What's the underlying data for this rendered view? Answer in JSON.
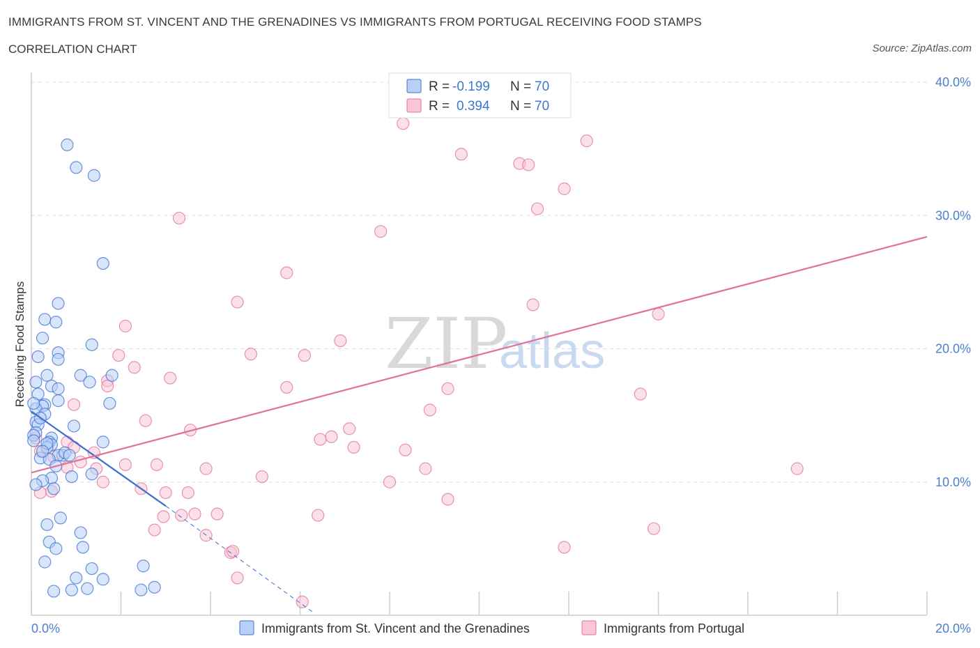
{
  "title": "IMMIGRANTS FROM ST. VINCENT AND THE GRENADINES VS IMMIGRANTS FROM PORTUGAL RECEIVING FOOD STAMPS",
  "subtitle": "CORRELATION CHART",
  "source": "Source: ZipAtlas.com",
  "watermark": {
    "zip": "ZIP",
    "atlas": "atlas"
  },
  "legend": {
    "r_label": "R =",
    "n_label": "N =",
    "rows": [
      {
        "r": "-0.199",
        "n": "70"
      },
      {
        "r": "0.394",
        "n": "70"
      }
    ]
  },
  "colors": {
    "blue": "#3a6fd0",
    "blue_fill": "#b8d0f5",
    "pink": "#e0709a",
    "pink_fill": "#f8c6d6",
    "grid": "#dddddd",
    "axis_text": "#4a7fd0"
  },
  "chart_data": {
    "type": "scatter",
    "title": "IMMIGRANTS FROM ST. VINCENT AND THE GRENADINES VS IMMIGRANTS FROM PORTUGAL RECEIVING FOOD STAMPS",
    "xlabel": "",
    "ylabel": "Receiving Food Stamps",
    "xlim": [
      0,
      20
    ],
    "ylim": [
      0,
      40
    ],
    "x_tick_labels": [
      "0.0%",
      "20.0%"
    ],
    "y_tick_labels": [
      "10.0%",
      "20.0%",
      "30.0%",
      "40.0%"
    ],
    "y_tick_values": [
      10,
      20,
      30,
      40
    ],
    "series": [
      {
        "name": "Immigrants from St. Vincent and the Grenadines",
        "r": -0.199,
        "n": 70,
        "trend": {
          "x": [
            0.0,
            3.0
          ],
          "y": [
            15.3,
            8.2
          ],
          "dashed_to": {
            "x": 6.3,
            "y": 0.2
          }
        },
        "points": [
          [
            0.8,
            35.3
          ],
          [
            1.0,
            33.6
          ],
          [
            1.4,
            33.0
          ],
          [
            1.6,
            26.4
          ],
          [
            0.6,
            23.4
          ],
          [
            0.3,
            22.2
          ],
          [
            0.55,
            22.0
          ],
          [
            0.25,
            20.8
          ],
          [
            1.35,
            20.3
          ],
          [
            0.6,
            19.7
          ],
          [
            0.15,
            19.4
          ],
          [
            0.6,
            19.2
          ],
          [
            1.1,
            18.0
          ],
          [
            0.35,
            18.0
          ],
          [
            1.8,
            18.0
          ],
          [
            1.3,
            17.5
          ],
          [
            0.1,
            17.5
          ],
          [
            0.45,
            17.2
          ],
          [
            0.6,
            17.0
          ],
          [
            0.15,
            16.6
          ],
          [
            0.6,
            16.1
          ],
          [
            1.75,
            15.9
          ],
          [
            0.3,
            15.8
          ],
          [
            0.25,
            15.7
          ],
          [
            0.1,
            15.5
          ],
          [
            0.3,
            15.1
          ],
          [
            0.1,
            14.5
          ],
          [
            0.15,
            14.3
          ],
          [
            0.95,
            14.2
          ],
          [
            0.1,
            13.7
          ],
          [
            0.05,
            13.5
          ],
          [
            0.45,
            13.3
          ],
          [
            0.4,
            13.0
          ],
          [
            1.6,
            13.0
          ],
          [
            0.45,
            12.8
          ],
          [
            0.35,
            12.6
          ],
          [
            0.7,
            12.0
          ],
          [
            0.6,
            12.0
          ],
          [
            0.75,
            12.2
          ],
          [
            0.85,
            12.0
          ],
          [
            0.2,
            11.8
          ],
          [
            0.4,
            11.7
          ],
          [
            1.35,
            10.6
          ],
          [
            0.9,
            10.4
          ],
          [
            0.45,
            10.3
          ],
          [
            0.25,
            10.1
          ],
          [
            0.1,
            9.8
          ],
          [
            0.5,
            9.5
          ],
          [
            0.65,
            7.3
          ],
          [
            0.35,
            6.8
          ],
          [
            1.1,
            6.2
          ],
          [
            0.4,
            5.5
          ],
          [
            0.55,
            5.0
          ],
          [
            1.15,
            5.1
          ],
          [
            0.3,
            4.0
          ],
          [
            1.35,
            3.5
          ],
          [
            2.5,
            3.7
          ],
          [
            1.0,
            2.8
          ],
          [
            1.6,
            2.7
          ],
          [
            0.5,
            1.8
          ],
          [
            0.9,
            1.9
          ],
          [
            1.25,
            2.0
          ],
          [
            2.45,
            1.9
          ],
          [
            2.75,
            2.1
          ],
          [
            0.05,
            15.9
          ],
          [
            0.2,
            14.8
          ],
          [
            0.35,
            12.9
          ],
          [
            0.05,
            13.1
          ],
          [
            0.55,
            11.2
          ],
          [
            0.25,
            12.3
          ]
        ]
      },
      {
        "name": "Immigrants from Portugal",
        "r": 0.394,
        "n": 70,
        "trend": {
          "x": [
            0.0,
            20.0
          ],
          "y": [
            10.7,
            28.4
          ]
        },
        "points": [
          [
            8.3,
            36.9
          ],
          [
            12.4,
            35.6
          ],
          [
            9.6,
            34.6
          ],
          [
            10.9,
            33.9
          ],
          [
            11.1,
            33.8
          ],
          [
            11.9,
            32.0
          ],
          [
            11.3,
            30.5
          ],
          [
            3.3,
            29.8
          ],
          [
            7.8,
            28.8
          ],
          [
            5.7,
            25.7
          ],
          [
            4.6,
            23.5
          ],
          [
            11.2,
            23.3
          ],
          [
            14.0,
            22.6
          ],
          [
            2.1,
            21.7
          ],
          [
            6.9,
            20.6
          ],
          [
            4.9,
            19.6
          ],
          [
            6.1,
            19.5
          ],
          [
            1.95,
            19.5
          ],
          [
            2.3,
            18.6
          ],
          [
            3.1,
            17.8
          ],
          [
            1.7,
            17.6
          ],
          [
            1.7,
            17.2
          ],
          [
            5.7,
            17.1
          ],
          [
            9.3,
            17.0
          ],
          [
            13.6,
            16.6
          ],
          [
            0.95,
            15.8
          ],
          [
            8.9,
            15.4
          ],
          [
            2.55,
            14.6
          ],
          [
            7.1,
            14.0
          ],
          [
            3.55,
            13.9
          ],
          [
            6.7,
            13.4
          ],
          [
            6.45,
            13.2
          ],
          [
            0.8,
            13.0
          ],
          [
            7.2,
            12.6
          ],
          [
            8.35,
            12.4
          ],
          [
            0.95,
            12.6
          ],
          [
            0.2,
            12.3
          ],
          [
            1.4,
            12.2
          ],
          [
            0.5,
            11.9
          ],
          [
            1.1,
            11.5
          ],
          [
            2.1,
            11.3
          ],
          [
            2.8,
            11.3
          ],
          [
            1.45,
            11.0
          ],
          [
            3.9,
            11.0
          ],
          [
            8.8,
            11.0
          ],
          [
            17.1,
            11.0
          ],
          [
            0.8,
            11.1
          ],
          [
            5.15,
            10.4
          ],
          [
            8.0,
            10.0
          ],
          [
            1.6,
            10.0
          ],
          [
            2.45,
            9.5
          ],
          [
            3.0,
            9.2
          ],
          [
            3.5,
            9.2
          ],
          [
            0.2,
            9.2
          ],
          [
            0.45,
            9.3
          ],
          [
            9.3,
            8.7
          ],
          [
            2.95,
            7.4
          ],
          [
            3.35,
            7.5
          ],
          [
            3.65,
            7.6
          ],
          [
            4.15,
            7.6
          ],
          [
            6.4,
            7.5
          ],
          [
            2.75,
            6.4
          ],
          [
            13.9,
            6.5
          ],
          [
            3.9,
            6.0
          ],
          [
            4.45,
            4.7
          ],
          [
            4.5,
            4.8
          ],
          [
            11.9,
            5.1
          ],
          [
            4.6,
            2.8
          ],
          [
            6.05,
            1.0
          ],
          [
            0.1,
            13.3
          ]
        ]
      }
    ]
  },
  "bottom_legend": [
    {
      "label": "Immigrants from St. Vincent and the Grenadines"
    },
    {
      "label": "Immigrants from Portugal"
    }
  ]
}
